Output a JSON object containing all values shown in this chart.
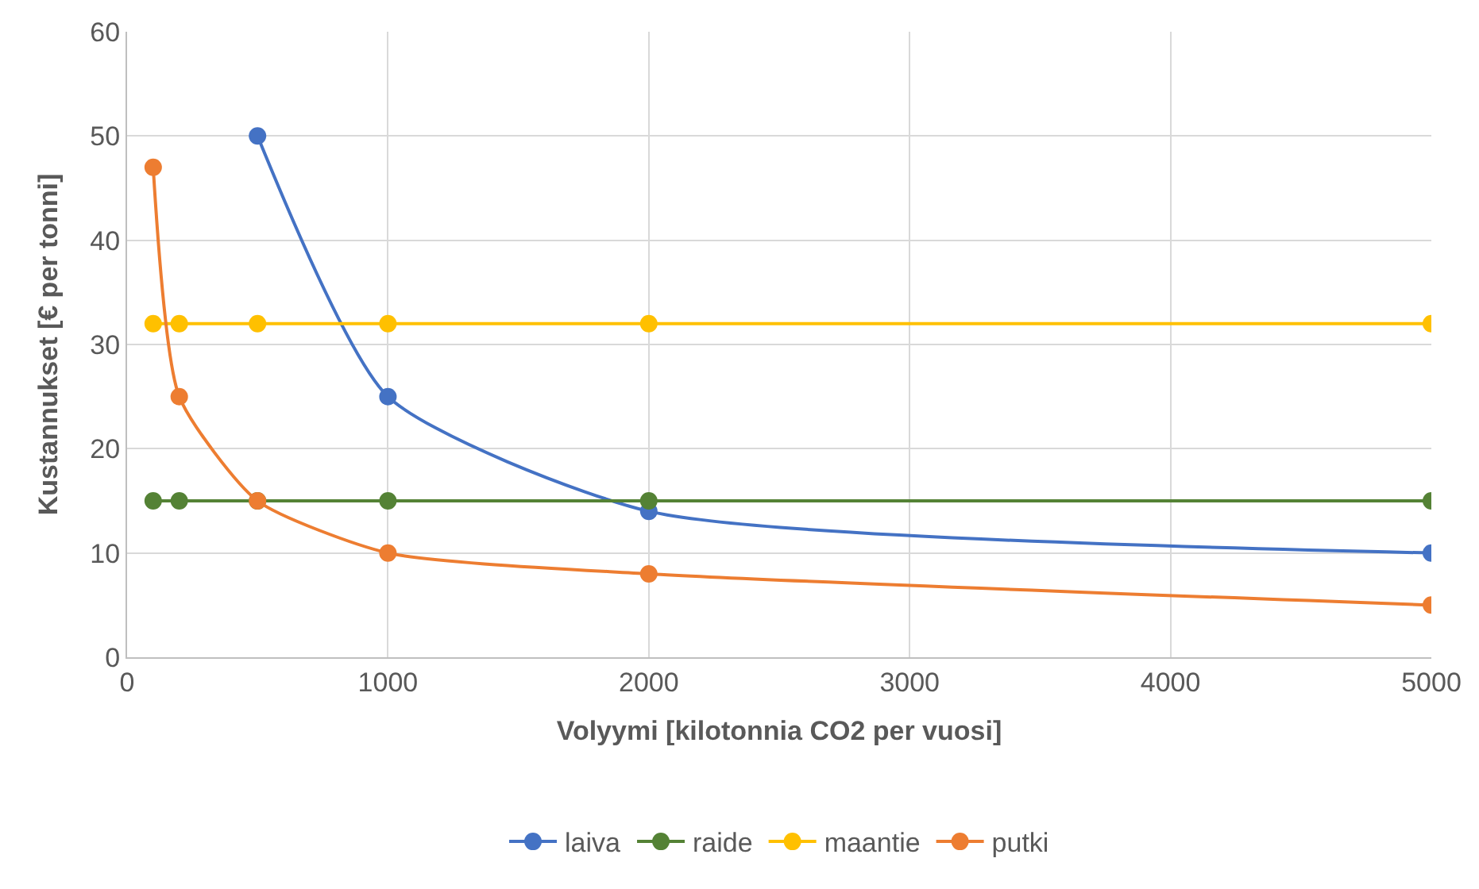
{
  "chart_data": {
    "type": "line",
    "xlabel": "Volyymi [kilotonnia CO2 per vuosi]",
    "ylabel": "Kustannukset [€ per tonni]",
    "xlim": [
      0,
      5000
    ],
    "xticks": [
      0,
      1000,
      2000,
      3000,
      4000,
      5000
    ],
    "ylim": [
      0,
      60
    ],
    "yticks": [
      0,
      10,
      20,
      30,
      40,
      50,
      60
    ],
    "grid": true,
    "legend": "bottom",
    "marker": "circle",
    "line_style": "solid",
    "series": [
      {
        "name": "laiva",
        "color": "#4472c4",
        "x": [
          500,
          1000,
          2000,
          5000
        ],
        "values": [
          50,
          25,
          14,
          10
        ]
      },
      {
        "name": "raide",
        "color": "#548235",
        "x": [
          100,
          200,
          500,
          1000,
          2000,
          5000
        ],
        "values": [
          15,
          15,
          15,
          15,
          15,
          15
        ]
      },
      {
        "name": "maantie",
        "color": "#ffc000",
        "x": [
          100,
          200,
          500,
          1000,
          2000,
          5000
        ],
        "values": [
          32,
          32,
          32,
          32,
          32,
          32
        ]
      },
      {
        "name": "putki",
        "color": "#ed7d31",
        "x": [
          100,
          200,
          500,
          1000,
          2000,
          5000
        ],
        "values": [
          47,
          25,
          15,
          10,
          8,
          5
        ]
      }
    ]
  }
}
